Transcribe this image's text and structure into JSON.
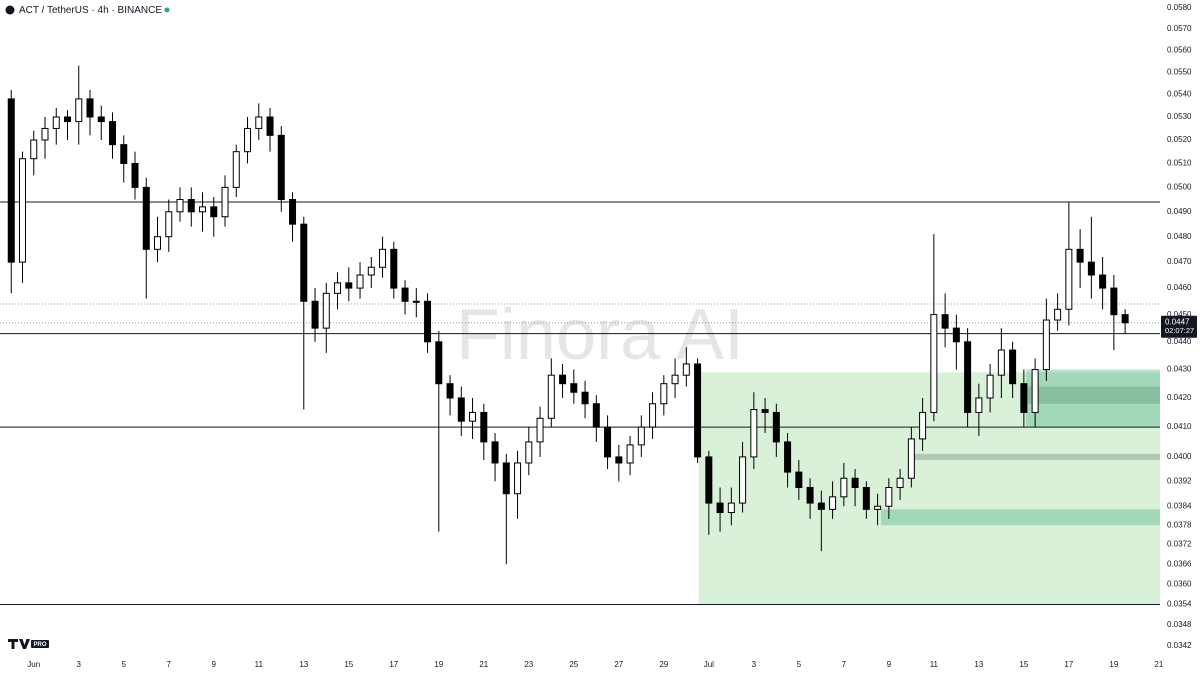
{
  "chart_data": {
    "type": "candlestick",
    "title": "ACT / TetherUS · 4h · BINANCE",
    "watermark": "Finora AI",
    "logo_badge": "PRO",
    "log_scale": true,
    "up_color": "#ffffff",
    "down_color": "#000000",
    "edge_color": "#000000",
    "xlim": [
      -0.5,
      51.05
    ],
    "ylim": [
      0.03395,
      0.05839
    ],
    "xticks": [
      {
        "value": 1,
        "label": "Jun"
      },
      3,
      5,
      7,
      9,
      11,
      13,
      15,
      17,
      19,
      21,
      23,
      25,
      27,
      29,
      {
        "value": 31,
        "label": "Jul"
      },
      {
        "value": 33,
        "label": "3"
      },
      {
        "value": 35,
        "label": "5"
      },
      {
        "value": 37,
        "label": "7"
      },
      {
        "value": 39,
        "label": "9"
      },
      {
        "value": 41,
        "label": "11"
      },
      {
        "value": 43,
        "label": "13"
      },
      {
        "value": 45,
        "label": "15"
      },
      {
        "value": 47,
        "label": "17"
      },
      {
        "value": 49,
        "label": "19"
      },
      {
        "value": 51,
        "label": "21"
      }
    ],
    "yticks": [
      {
        "value": 0.058,
        "label": "0.0580"
      },
      {
        "value": 0.057,
        "label": "0.0570"
      },
      {
        "value": 0.056,
        "label": "0.0560"
      },
      {
        "value": 0.055,
        "label": "0.0550"
      },
      {
        "value": 0.054,
        "label": "0.0540"
      },
      {
        "value": 0.053,
        "label": "0.0530"
      },
      {
        "value": 0.052,
        "label": "0.0520"
      },
      {
        "value": 0.051,
        "label": "0.0510"
      },
      {
        "value": 0.05,
        "label": "0.0500"
      },
      {
        "value": 0.049,
        "label": "0.0490"
      },
      {
        "value": 0.048,
        "label": "0.0480"
      },
      {
        "value": 0.047,
        "label": "0.0470"
      },
      {
        "value": 0.046,
        "label": "0.0460"
      },
      {
        "value": 0.045,
        "label": "0.0450"
      },
      {
        "value": 0.044,
        "label": "0.0440"
      },
      {
        "value": 0.043,
        "label": "0.0430"
      },
      {
        "value": 0.042,
        "label": "0.0420"
      },
      {
        "value": 0.041,
        "label": "0.0410"
      },
      {
        "value": 0.04,
        "label": "0.0400"
      },
      0.0392,
      0.0384,
      0.0378,
      0.0372,
      0.0366,
      {
        "value": 0.036,
        "label": "0.0360"
      },
      0.0354,
      0.0348,
      0.0342
    ],
    "horizontal_lines": [
      0.0494,
      0.0443,
      0.041,
      0.0354
    ],
    "dotted_lines": [
      0.0454,
      0.0447
    ],
    "zones": [
      {
        "x_from": 30.55,
        "low": 0.0354,
        "high": 0.0429,
        "color": "rgba(120,200,120,0.28)"
      },
      {
        "x_from": 45.1,
        "low": 0.041,
        "high": 0.043,
        "color": "rgba(60,170,120,0.35)"
      },
      {
        "x_from": 45.1,
        "low": 0.0418,
        "high": 0.0424,
        "color": "rgba(80,130,110,0.3)"
      },
      {
        "x_from": 40.07,
        "low": 0.0399,
        "high": 0.0401,
        "color": "rgba(100,130,120,0.35)"
      },
      {
        "x_from": 38.65,
        "low": 0.0378,
        "high": 0.0383,
        "color": "rgba(60,170,120,0.35)"
      }
    ],
    "last_price": 0.0447,
    "countdown": "02:07:27",
    "x": [
      0,
      0.5,
      1,
      1.5,
      2,
      2.5,
      3,
      3.5,
      4,
      4.5,
      5,
      5.5,
      6,
      6.5,
      7,
      7.5,
      8,
      8.5,
      9,
      9.5,
      10,
      10.5,
      11,
      11.5,
      12,
      12.5,
      13,
      13.5,
      14,
      14.5,
      15,
      15.5,
      16,
      16.5,
      17,
      17.5,
      18,
      18.5,
      19,
      19.5,
      20,
      20.5,
      21,
      21.5,
      22,
      22.5,
      23,
      23.5,
      24,
      24.5,
      25,
      25.5,
      26,
      26.5,
      27,
      27.5,
      28,
      28.5,
      29,
      29.5,
      30,
      30.5,
      31,
      31.5,
      32,
      32.5,
      33,
      33.5,
      34,
      34.5,
      35,
      35.5,
      36,
      36.5,
      37,
      37.5,
      38,
      38.5,
      39,
      39.5,
      40,
      40.5,
      41,
      41.5,
      42,
      42.5,
      43,
      43.5,
      44,
      44.5,
      45,
      45.5,
      46,
      46.5,
      47,
      47.5,
      48,
      48.5,
      49,
      49.5
    ],
    "open": [
      0.0538,
      0.047,
      0.0512,
      0.052,
      0.0525,
      0.053,
      0.0528,
      0.0538,
      0.053,
      0.0528,
      0.0518,
      0.051,
      0.05,
      0.0475,
      0.048,
      0.049,
      0.0495,
      0.049,
      0.0492,
      0.0488,
      0.05,
      0.0515,
      0.0525,
      0.053,
      0.0522,
      0.0495,
      0.0485,
      0.0455,
      0.0445,
      0.0458,
      0.0462,
      0.046,
      0.0465,
      0.0468,
      0.0475,
      0.046,
      0.0455,
      0.0455,
      0.044,
      0.0425,
      0.042,
      0.0412,
      0.0415,
      0.0405,
      0.0398,
      0.0388,
      0.0398,
      0.0405,
      0.0413,
      0.0428,
      0.0425,
      0.0422,
      0.0418,
      0.041,
      0.04,
      0.0398,
      0.0404,
      0.041,
      0.0418,
      0.0425,
      0.0428,
      0.0432,
      0.04,
      0.0385,
      0.0382,
      0.0385,
      0.04,
      0.0416,
      0.0415,
      0.0405,
      0.0395,
      0.039,
      0.0385,
      0.0383,
      0.0387,
      0.0393,
      0.039,
      0.0383,
      0.0384,
      0.039,
      0.0393,
      0.0406,
      0.0415,
      0.045,
      0.0445,
      0.044,
      0.0415,
      0.042,
      0.0428,
      0.0437,
      0.0425,
      0.0415,
      0.043,
      0.0448,
      0.0452,
      0.0475,
      0.047,
      0.0465,
      0.046,
      0.045
    ],
    "high": [
      0.0542,
      0.0515,
      0.0524,
      0.053,
      0.0534,
      0.0533,
      0.0553,
      0.0542,
      0.0535,
      0.0532,
      0.0522,
      0.0515,
      0.0504,
      0.0488,
      0.0495,
      0.05,
      0.05,
      0.0498,
      0.0496,
      0.0505,
      0.0518,
      0.053,
      0.0536,
      0.0534,
      0.0526,
      0.0498,
      0.0488,
      0.046,
      0.0462,
      0.0466,
      0.0468,
      0.047,
      0.0472,
      0.048,
      0.0478,
      0.0463,
      0.046,
      0.0458,
      0.0444,
      0.0428,
      0.0424,
      0.042,
      0.0418,
      0.0408,
      0.0401,
      0.0402,
      0.041,
      0.0417,
      0.0434,
      0.0432,
      0.043,
      0.0426,
      0.0421,
      0.0414,
      0.0404,
      0.0407,
      0.0414,
      0.0422,
      0.0428,
      0.0434,
      0.0438,
      0.0434,
      0.0402,
      0.039,
      0.039,
      0.0405,
      0.0422,
      0.042,
      0.0418,
      0.0408,
      0.0399,
      0.0393,
      0.0389,
      0.0392,
      0.0398,
      0.0396,
      0.0392,
      0.0388,
      0.0393,
      0.0396,
      0.041,
      0.042,
      0.0481,
      0.0458,
      0.045,
      0.0445,
      0.0425,
      0.0432,
      0.0445,
      0.044,
      0.043,
      0.0434,
      0.0456,
      0.0458,
      0.0494,
      0.0483,
      0.0488,
      0.0472,
      0.0465,
      0.0452
    ],
    "low": [
      0.0458,
      0.0462,
      0.0505,
      0.0512,
      0.0518,
      0.052,
      0.0518,
      0.0522,
      0.052,
      0.0512,
      0.0502,
      0.0495,
      0.0456,
      0.047,
      0.0474,
      0.0486,
      0.0484,
      0.0482,
      0.048,
      0.0484,
      0.0496,
      0.051,
      0.052,
      0.0515,
      0.049,
      0.0478,
      0.0416,
      0.044,
      0.0436,
      0.0452,
      0.0455,
      0.0456,
      0.046,
      0.0464,
      0.0456,
      0.045,
      0.0449,
      0.0436,
      0.0376,
      0.0414,
      0.0407,
      0.0406,
      0.0399,
      0.0392,
      0.0366,
      0.038,
      0.0394,
      0.04,
      0.041,
      0.042,
      0.0418,
      0.0413,
      0.0405,
      0.0396,
      0.0392,
      0.0394,
      0.04,
      0.0406,
      0.0414,
      0.042,
      0.0424,
      0.0398,
      0.0375,
      0.0376,
      0.0378,
      0.0382,
      0.0396,
      0.0408,
      0.04,
      0.039,
      0.0386,
      0.038,
      0.037,
      0.038,
      0.0384,
      0.0384,
      0.038,
      0.0378,
      0.038,
      0.0386,
      0.039,
      0.0402,
      0.0412,
      0.0438,
      0.043,
      0.041,
      0.0407,
      0.0415,
      0.042,
      0.042,
      0.041,
      0.041,
      0.0426,
      0.0444,
      0.0446,
      0.046,
      0.0456,
      0.0452,
      0.0437,
      0.0443
    ],
    "close": [
      0.047,
      0.0512,
      0.052,
      0.0525,
      0.053,
      0.0528,
      0.0538,
      0.053,
      0.0528,
      0.0518,
      0.051,
      0.05,
      0.0475,
      0.048,
      0.049,
      0.0495,
      0.049,
      0.0492,
      0.0488,
      0.05,
      0.0515,
      0.0525,
      0.053,
      0.0522,
      0.0495,
      0.0485,
      0.0455,
      0.0445,
      0.0458,
      0.0462,
      0.046,
      0.0465,
      0.0468,
      0.0475,
      0.046,
      0.0455,
      0.0455,
      0.044,
      0.0425,
      0.042,
      0.0412,
      0.0415,
      0.0405,
      0.0398,
      0.0388,
      0.0398,
      0.0405,
      0.0413,
      0.0428,
      0.0425,
      0.0422,
      0.0418,
      0.041,
      0.04,
      0.0398,
      0.0404,
      0.041,
      0.0418,
      0.0425,
      0.0428,
      0.0432,
      0.04,
      0.0385,
      0.0382,
      0.0385,
      0.04,
      0.0416,
      0.0415,
      0.0405,
      0.0395,
      0.039,
      0.0385,
      0.0383,
      0.0387,
      0.0393,
      0.039,
      0.0383,
      0.0384,
      0.039,
      0.0393,
      0.0406,
      0.0415,
      0.045,
      0.0445,
      0.044,
      0.0415,
      0.042,
      0.0428,
      0.0437,
      0.0425,
      0.0415,
      0.043,
      0.0448,
      0.0452,
      0.0475,
      0.047,
      0.0465,
      0.046,
      0.045,
      0.0447
    ]
  }
}
